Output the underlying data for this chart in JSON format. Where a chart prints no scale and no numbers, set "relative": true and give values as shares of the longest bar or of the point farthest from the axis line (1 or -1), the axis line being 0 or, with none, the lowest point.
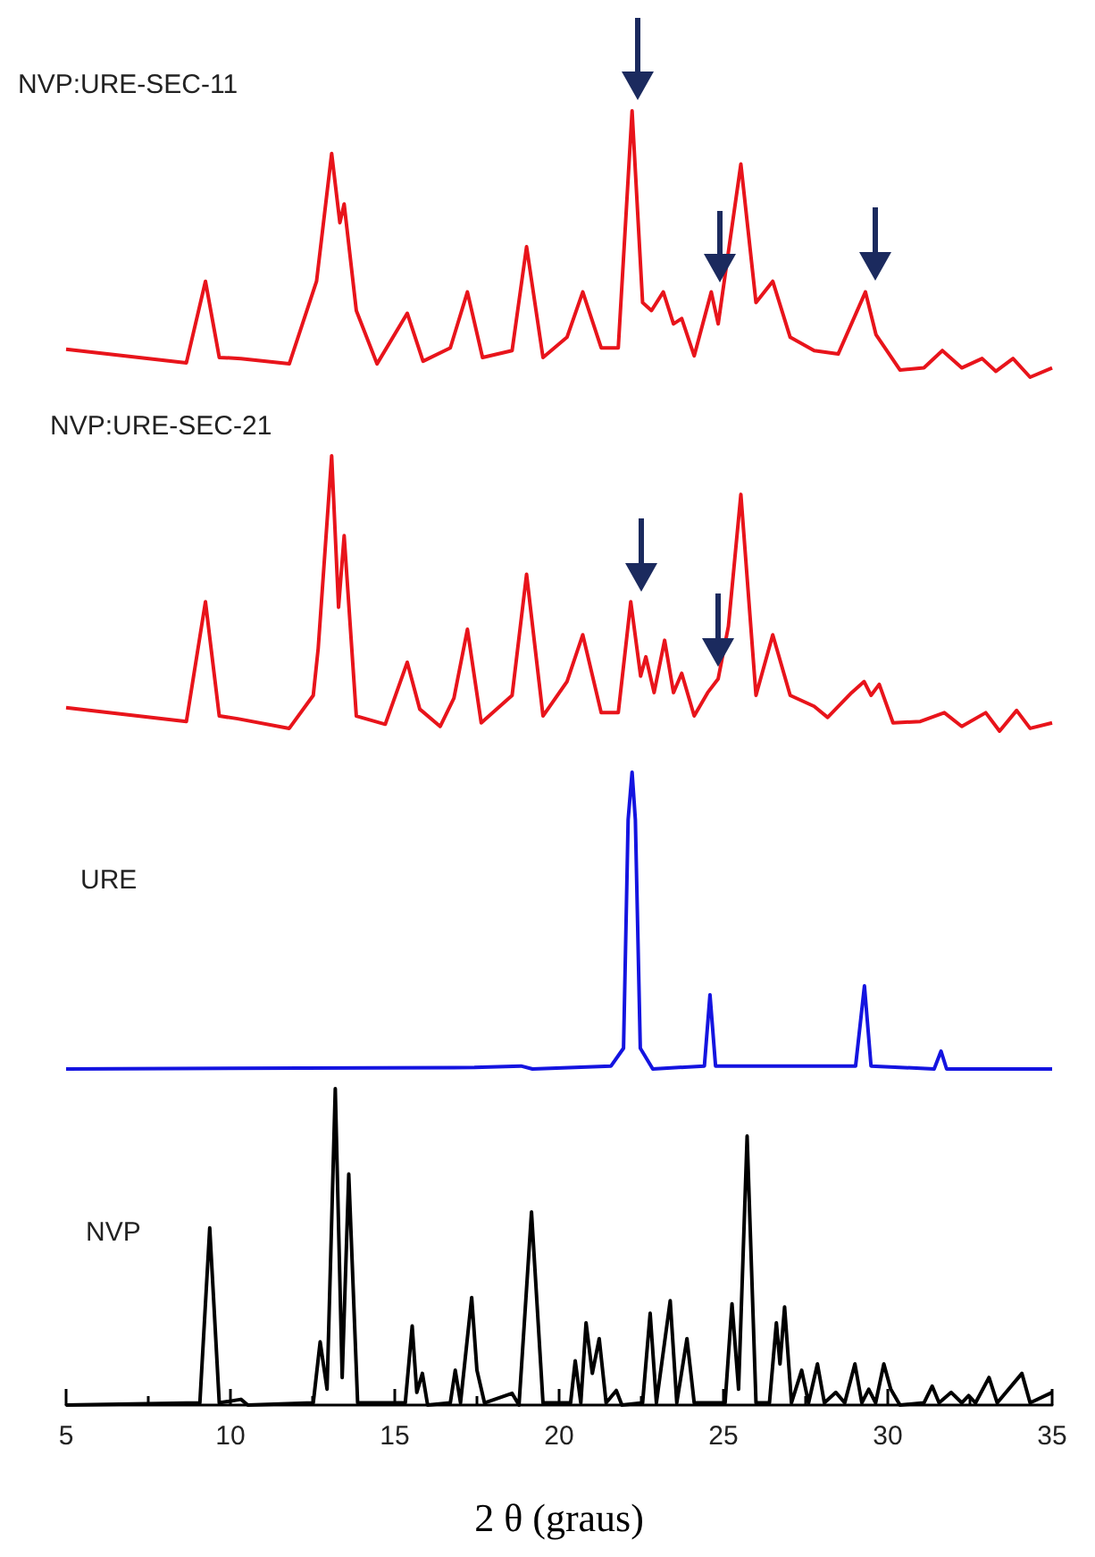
{
  "chart_data": [
    {
      "type": "line",
      "relative": true,
      "xlim": [
        5,
        35
      ],
      "tick_labels": false,
      "series": [
        {
          "name": "NVP:URE-SEC-11",
          "color": "#e8141b",
          "x": [
            5.0,
            8.66,
            9.24,
            9.66,
            10.32,
            11.79,
            12.62,
            13.08,
            13.33,
            13.46,
            13.83,
            14.46,
            15.38,
            15.86,
            16.69,
            17.21,
            17.67,
            18.57,
            19.01,
            19.51,
            20.24,
            20.72,
            21.28,
            21.8,
            22.22,
            22.54,
            22.81,
            23.17,
            23.48,
            23.73,
            24.11,
            24.63,
            24.84,
            25.53,
            25.99,
            26.5,
            27.03,
            27.76,
            28.49,
            29.32,
            29.64,
            30.37,
            31.1,
            31.66,
            32.25,
            32.87,
            33.29,
            33.81,
            34.33,
            35.0
          ],
          "values": [
            0.105,
            0.054,
            0.36,
            0.074,
            0.07,
            0.05,
            0.36,
            0.84,
            0.58,
            0.65,
            0.25,
            0.05,
            0.24,
            0.06,
            0.11,
            0.32,
            0.074,
            0.1,
            0.49,
            0.074,
            0.15,
            0.32,
            0.11,
            0.11,
            1.0,
            0.28,
            0.25,
            0.32,
            0.2,
            0.22,
            0.08,
            0.32,
            0.2,
            0.8,
            0.28,
            0.36,
            0.15,
            0.1,
            0.087,
            0.32,
            0.16,
            0.027,
            0.035,
            0.1,
            0.035,
            0.07,
            0.022,
            0.07,
            0,
            0.035
          ]
        }
      ]
    },
    {
      "type": "line",
      "relative": true,
      "xlim": [
        5,
        35
      ],
      "tick_labels": false,
      "series": [
        {
          "name": "NVP:URE-SEC-21",
          "color": "#e8141b",
          "x": [
            5.0,
            8.66,
            9.24,
            9.66,
            10.22,
            11.79,
            12.52,
            12.67,
            13.08,
            13.29,
            13.46,
            13.83,
            14.71,
            15.38,
            15.76,
            16.38,
            16.8,
            17.21,
            17.63,
            18.57,
            19.01,
            19.51,
            20.24,
            20.72,
            21.28,
            21.8,
            22.18,
            22.48,
            22.64,
            22.89,
            23.21,
            23.48,
            23.73,
            24.11,
            24.52,
            24.84,
            25.15,
            25.53,
            25.99,
            26.5,
            27.03,
            27.76,
            28.17,
            28.9,
            29.28,
            29.49,
            29.74,
            30.16,
            30.99,
            31.72,
            32.25,
            32.98,
            33.4,
            33.92,
            34.33,
            35.0
          ],
          "values": [
            0.085,
            0.035,
            0.47,
            0.055,
            0.045,
            0.01,
            0.13,
            0.3,
            1.0,
            0.45,
            0.71,
            0.055,
            0.025,
            0.25,
            0.08,
            0.017,
            0.12,
            0.37,
            0.03,
            0.13,
            0.57,
            0.055,
            0.18,
            0.35,
            0.067,
            0.067,
            0.47,
            0.2,
            0.27,
            0.14,
            0.33,
            0.14,
            0.21,
            0.055,
            0.14,
            0.19,
            0.38,
            0.86,
            0.13,
            0.35,
            0.13,
            0.09,
            0.05,
            0.14,
            0.18,
            0.13,
            0.17,
            0.03,
            0.035,
            0.067,
            0.017,
            0.067,
            0,
            0.075,
            0.01,
            0.03
          ]
        }
      ]
    },
    {
      "type": "line",
      "relative": true,
      "xlim": [
        5,
        35
      ],
      "tick_labels": false,
      "series": [
        {
          "name": "URE",
          "color": "#1414e0",
          "x": [
            5.0,
            17.42,
            18.84,
            19.19,
            21.58,
            21.96,
            22.1,
            22.22,
            22.32,
            22.47,
            22.85,
            24.42,
            24.59,
            24.76,
            29.02,
            29.29,
            29.49,
            31.41,
            31.62,
            31.79,
            35.0
          ],
          "values": [
            0,
            0.005,
            0.01,
            0,
            0.01,
            0.07,
            0.84,
            1.0,
            0.84,
            0.07,
            0,
            0.01,
            0.25,
            0.01,
            0.01,
            0.28,
            0.01,
            0,
            0.06,
            0,
            0
          ]
        }
      ]
    },
    {
      "type": "line",
      "relative": true,
      "xlim": [
        5,
        35
      ],
      "tick_labels": "x",
      "xlabel": "2 θ (graus)",
      "xticks": [
        5,
        {
          "value": 7.5,
          "label": null
        },
        10,
        {
          "value": 12.5,
          "label": null
        },
        15,
        {
          "value": 17.5,
          "label": null
        },
        20,
        {
          "value": 22.5,
          "label": null
        },
        25,
        {
          "value": 27.5,
          "label": null
        },
        30,
        {
          "value": 32.5,
          "label": null
        },
        35
      ],
      "series": [
        {
          "name": "NVP",
          "color": "#000000",
          "x": [
            5.0,
            9.07,
            9.37,
            9.66,
            10.32,
            10.53,
            12.52,
            12.73,
            12.94,
            13.19,
            13.4,
            13.6,
            13.87,
            15.32,
            15.53,
            15.67,
            15.84,
            16.0,
            16.69,
            16.84,
            17.0,
            17.34,
            17.5,
            17.73,
            18.57,
            18.78,
            19.16,
            19.51,
            20.35,
            20.49,
            20.66,
            20.82,
            21.01,
            21.22,
            21.43,
            21.74,
            21.91,
            22.54,
            22.77,
            22.96,
            23.38,
            23.58,
            23.89,
            24.11,
            25.05,
            25.26,
            25.46,
            25.72,
            25.99,
            26.4,
            26.61,
            26.72,
            26.86,
            27.07,
            27.38,
            27.59,
            27.86,
            28.07,
            28.42,
            28.69,
            29.0,
            29.21,
            29.42,
            29.63,
            29.88,
            30.09,
            30.37,
            31.1,
            31.35,
            31.56,
            31.93,
            32.25,
            32.46,
            32.67,
            33.08,
            33.33,
            34.08,
            34.33,
            35.0
          ],
          "values": [
            0,
            0.007,
            0.56,
            0.007,
            0.018,
            0,
            0.007,
            0.2,
            0.05,
            1.0,
            0.087,
            0.73,
            0.007,
            0.007,
            0.25,
            0.04,
            0.1,
            0,
            0.007,
            0.11,
            0.007,
            0.34,
            0.11,
            0.007,
            0.037,
            0,
            0.61,
            0.007,
            0.007,
            0.14,
            0.007,
            0.26,
            0.1,
            0.21,
            0.007,
            0.046,
            0,
            0.007,
            0.29,
            0.007,
            0.33,
            0.007,
            0.21,
            0.007,
            0.007,
            0.32,
            0.05,
            0.85,
            0.007,
            0.007,
            0.26,
            0.13,
            0.31,
            0.007,
            0.11,
            0.007,
            0.13,
            0.007,
            0.04,
            0.007,
            0.13,
            0.007,
            0.05,
            0.007,
            0.13,
            0.05,
            0,
            0.007,
            0.06,
            0.007,
            0.04,
            0.007,
            0.03,
            0.007,
            0.087,
            0.007,
            0.1,
            0.007,
            0.04
          ]
        }
      ]
    }
  ]
}
